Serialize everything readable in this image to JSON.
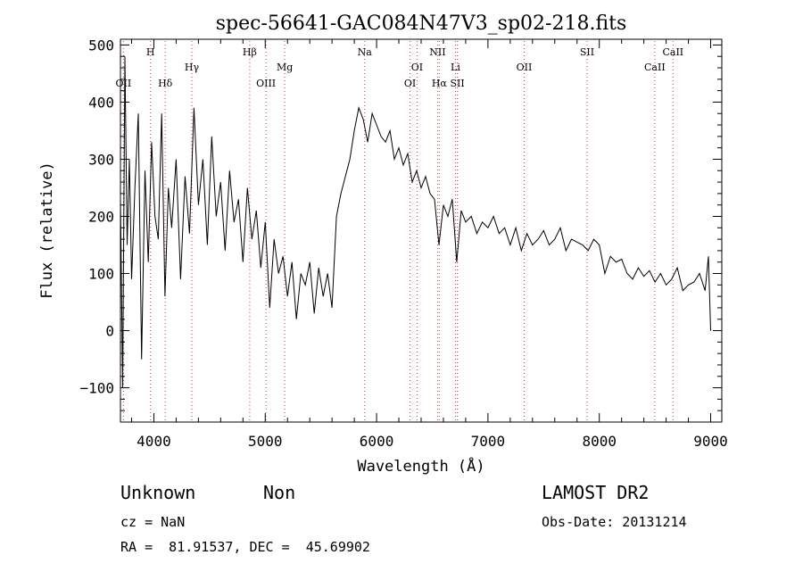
{
  "chart_data": {
    "type": "line",
    "title": "spec-56641-GAC084N47V3_sp02-218.fits",
    "xlabel": "Wavelength (Å)",
    "ylabel": "Flux (relative)",
    "xlim": [
      3700,
      9100
    ],
    "ylim": [
      -160,
      510
    ],
    "x_ticks": [
      4000,
      5000,
      6000,
      7000,
      8000,
      9000
    ],
    "x_tick_labels": [
      "4000",
      "5000",
      "6000",
      "7000",
      "8000",
      "9000"
    ],
    "y_ticks": [
      -100,
      0,
      100,
      200,
      300,
      400,
      500
    ],
    "y_tick_labels": [
      "−100",
      "0",
      "100",
      "200",
      "300",
      "400",
      "500"
    ],
    "grid": false,
    "series": [
      {
        "x": [
          3700,
          3720,
          3740,
          3760,
          3780,
          3800,
          3830,
          3860,
          3890,
          3920,
          3950,
          3980,
          4010,
          4040,
          4070,
          4100,
          4130,
          4160,
          4200,
          4240,
          4280,
          4320,
          4360,
          4400,
          4440,
          4480,
          4520,
          4560,
          4600,
          4640,
          4680,
          4720,
          4760,
          4800,
          4840,
          4880,
          4920,
          4960,
          5000,
          5040,
          5080,
          5120,
          5160,
          5200,
          5240,
          5280,
          5320,
          5360,
          5400,
          5440,
          5480,
          5520,
          5560,
          5600,
          5640,
          5680,
          5720,
          5760,
          5800,
          5840,
          5880,
          5920,
          5960,
          6000,
          6040,
          6080,
          6120,
          6160,
          6200,
          6240,
          6280,
          6320,
          6360,
          6400,
          6440,
          6480,
          6520,
          6560,
          6600,
          6640,
          6680,
          6720,
          6760,
          6800,
          6850,
          6900,
          6950,
          7000,
          7050,
          7100,
          7150,
          7200,
          7250,
          7300,
          7350,
          7400,
          7450,
          7500,
          7550,
          7600,
          7650,
          7700,
          7750,
          7800,
          7850,
          7900,
          7950,
          8000,
          8050,
          8100,
          8150,
          8200,
          8250,
          8300,
          8350,
          8400,
          8450,
          8500,
          8550,
          8600,
          8650,
          8700,
          8750,
          8800,
          8850,
          8900,
          8950,
          8980,
          9000
        ],
        "y": [
          230,
          -100,
          480,
          150,
          300,
          90,
          250,
          380,
          -50,
          280,
          120,
          330,
          200,
          160,
          380,
          60,
          250,
          180,
          300,
          90,
          270,
          170,
          390,
          220,
          300,
          150,
          340,
          200,
          260,
          140,
          280,
          190,
          230,
          120,
          250,
          160,
          210,
          110,
          190,
          40,
          160,
          100,
          130,
          60,
          120,
          20,
          100,
          80,
          120,
          30,
          110,
          60,
          100,
          40,
          200,
          240,
          270,
          300,
          350,
          390,
          370,
          330,
          380,
          360,
          340,
          330,
          350,
          300,
          320,
          290,
          310,
          260,
          280,
          250,
          270,
          240,
          230,
          150,
          220,
          200,
          230,
          120,
          210,
          190,
          200,
          170,
          190,
          180,
          200,
          170,
          180,
          150,
          180,
          140,
          170,
          150,
          160,
          175,
          150,
          160,
          180,
          140,
          160,
          155,
          150,
          140,
          160,
          150,
          100,
          130,
          120,
          125,
          100,
          90,
          110,
          95,
          105,
          85,
          100,
          80,
          90,
          110,
          70,
          80,
          85,
          100,
          70,
          130,
          0
        ]
      }
    ],
    "lines": [
      {
        "wavelength": 3727,
        "label": "OII",
        "row": 3
      },
      {
        "wavelength": 3970,
        "label": "H",
        "row": 1
      },
      {
        "wavelength": 4102,
        "label": "Hδ",
        "row": 3
      },
      {
        "wavelength": 4341,
        "label": "Hγ",
        "row": 2
      },
      {
        "wavelength": 4861,
        "label": "Hβ",
        "row": 1
      },
      {
        "wavelength": 5007,
        "label": "OIII",
        "row": 3
      },
      {
        "wavelength": 5175,
        "label": "Mg",
        "row": 2
      },
      {
        "wavelength": 5893,
        "label": "Na",
        "row": 1
      },
      {
        "wavelength": 6300,
        "label": "OI",
        "row": 3
      },
      {
        "wavelength": 6363,
        "label": "OI",
        "row": 2
      },
      {
        "wavelength": 6548,
        "label": "NII",
        "row": 1
      },
      {
        "wavelength": 6563,
        "label": "Hα",
        "row": 3
      },
      {
        "wavelength": 6708,
        "label": "Li",
        "row": 2
      },
      {
        "wavelength": 6725,
        "label": "SII",
        "row": 3
      },
      {
        "wavelength": 7325,
        "label": "OII",
        "row": 2
      },
      {
        "wavelength": 7890,
        "label": "SII",
        "row": 1
      },
      {
        "wavelength": 8498,
        "label": "CaII",
        "row": 2
      },
      {
        "wavelength": 8662,
        "label": "CaII",
        "row": 1
      }
    ]
  },
  "info": {
    "class": "Unknown",
    "subclass": "Non",
    "cz": "cz = NaN",
    "coords": "RA =  81.91537, DEC =  45.69902",
    "survey": "LAMOST DR2",
    "obs_date": "Obs-Date: 20131214"
  },
  "colors": {
    "line_markers": "#d04040",
    "spectrum": "#000000"
  }
}
